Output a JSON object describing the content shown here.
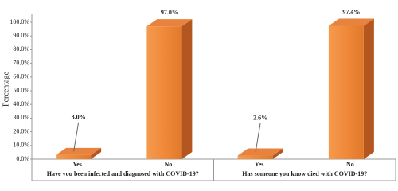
{
  "chart_data": {
    "type": "bar3d",
    "y_label": "Percentage",
    "categories": [
      "Yes",
      "No",
      "Yes",
      "No"
    ],
    "groups": [
      "Have you been infected and diagnosed with COVID-19?",
      "Has someone you know died with COVID-19?"
    ],
    "values": [
      3.0,
      97.0,
      2.6,
      97.4
    ],
    "value_labels": [
      "3.0%",
      "97.0%",
      "2.6%",
      "97.4%"
    ],
    "color": "#f0893a",
    "ylim": [
      0,
      100
    ],
    "yticks": [
      {
        "value": 0,
        "label": "0.0%"
      },
      {
        "value": 10,
        "label": "10.0%"
      },
      {
        "value": 20,
        "label": "20.0%"
      },
      {
        "value": 30,
        "label": "30.0%"
      },
      {
        "value": 40,
        "label": "40.0%"
      },
      {
        "value": 50,
        "label": "50.0%"
      },
      {
        "value": 60,
        "label": "60.0%"
      },
      {
        "value": 70,
        "label": "70.0%"
      },
      {
        "value": 80,
        "label": "80.0%"
      },
      {
        "value": 90,
        "label": "90.0%"
      },
      {
        "value": 100,
        "label": "100.0%"
      }
    ]
  }
}
